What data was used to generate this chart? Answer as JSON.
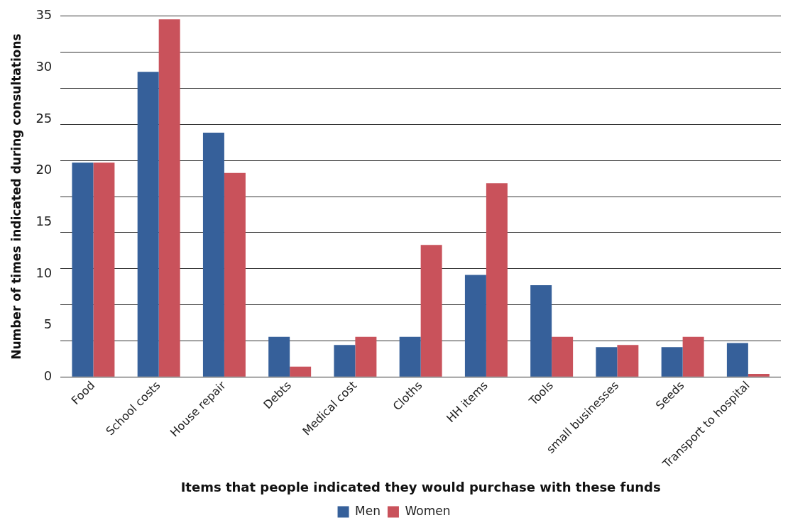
{
  "chart_data": {
    "type": "bar",
    "xlabel": "Items that people indicated they would purchase with these funds",
    "ylabel": "Number of times indicated during consultations",
    "categories": [
      "Food",
      "School costs",
      "House repair",
      "Debts",
      "Medical cost",
      "Cloths",
      "HH items",
      "Tools",
      "small businesses",
      "Seeds",
      "Transport to hospital"
    ],
    "series": [
      {
        "name": "Men",
        "color": "#36609a",
        "values": [
          20.8,
          29.6,
          23.7,
          3.9,
          3.1,
          3.9,
          9.9,
          8.9,
          2.9,
          2.9,
          3.3
        ]
      },
      {
        "name": "Women",
        "color": "#c9525b",
        "values": [
          20.8,
          34.7,
          19.8,
          1.0,
          3.9,
          12.8,
          18.8,
          3.9,
          3.1,
          3.9,
          0.3
        ]
      }
    ],
    "ylim": [
      0,
      35
    ],
    "yticks": [
      0,
      {
        "value": 3.5,
        "label": null
      },
      5,
      {
        "value": 7,
        "label": null
      },
      10,
      {
        "value": 10.5,
        "label": null
      },
      {
        "value": 14,
        "label": null
      },
      15,
      {
        "value": 17.5,
        "label": null
      },
      20,
      {
        "value": 21,
        "label": null
      },
      {
        "value": 24.5,
        "label": null
      },
      25,
      {
        "value": 28,
        "label": null
      },
      30,
      {
        "value": 31.5,
        "label": null
      },
      35
    ],
    "grid": "y",
    "legend": "bottom"
  }
}
